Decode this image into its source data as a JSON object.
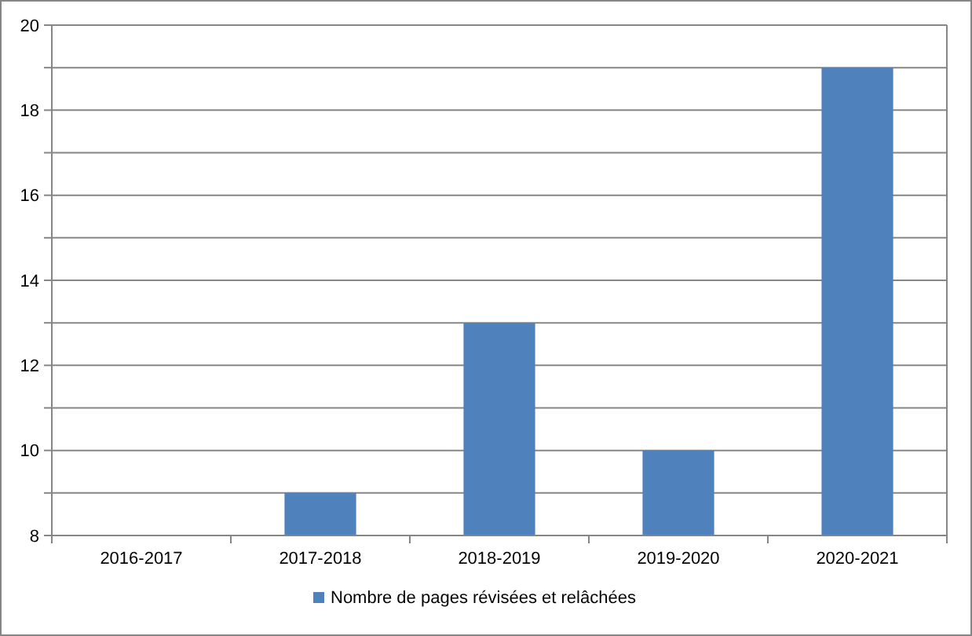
{
  "chart_data": {
    "type": "bar",
    "categories": [
      "2016-2017",
      "2017-2018",
      "2018-2019",
      "2019-2020",
      "2020-2021"
    ],
    "series": [
      {
        "name": "Nombre de pages révisées et relâchées",
        "color": "#4f81bd",
        "values": [
          8,
          9,
          13,
          10,
          19
        ]
      }
    ],
    "ylim": [
      8,
      20
    ],
    "yticks": [
      8,
      {
        "value": 9,
        "label": null
      },
      10,
      {
        "value": 11,
        "label": null
      },
      12,
      {
        "value": 13,
        "label": null
      },
      14,
      {
        "value": 15,
        "label": null
      },
      16,
      {
        "value": 17,
        "label": null
      },
      18,
      {
        "value": 19,
        "label": null
      },
      20
    ],
    "grid": true,
    "legend": "bottom"
  }
}
